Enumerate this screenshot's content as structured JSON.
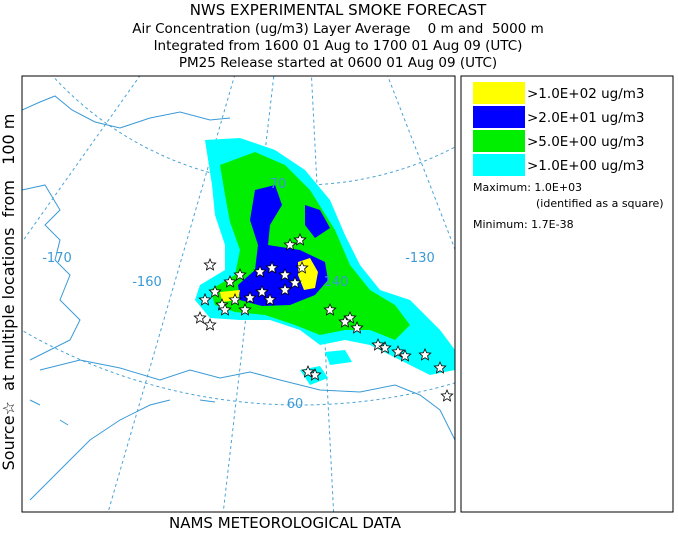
{
  "header": {
    "title": "NWS EXPERIMENTAL SMOKE FORECAST",
    "lines": [
      "Air Concentration (ug/m3) Layer Average    0 m and  5000 m",
      "Integrated from 1600 01 Aug to 1700 01 Aug 09 (UTC)",
      "PM25 Release started at 0600 01 Aug 09 (UTC)"
    ]
  },
  "side_label": "Source☆  at multiple locations  from   100 m",
  "footer": "NAMS METEOROLOGICAL DATA",
  "legend": {
    "items": [
      {
        "label": ">1.0E+02 ug/m3",
        "color": "#ffff00"
      },
      {
        "label": ">2.0E+01 ug/m3",
        "color": "#0000ff"
      },
      {
        "label": ">5.0E+00 ug/m3",
        "color": "#00ee00"
      },
      {
        "label": ">1.0E+00 ug/m3",
        "color": "#00ffff"
      }
    ],
    "maximum": "Maximum: 1.0E+03",
    "max_note": "(identified as a square)",
    "minimum": "Minimum: 1.7E-38"
  },
  "map_labels": [
    "-170",
    "-160",
    "140",
    "-130",
    "70",
    "60"
  ]
}
